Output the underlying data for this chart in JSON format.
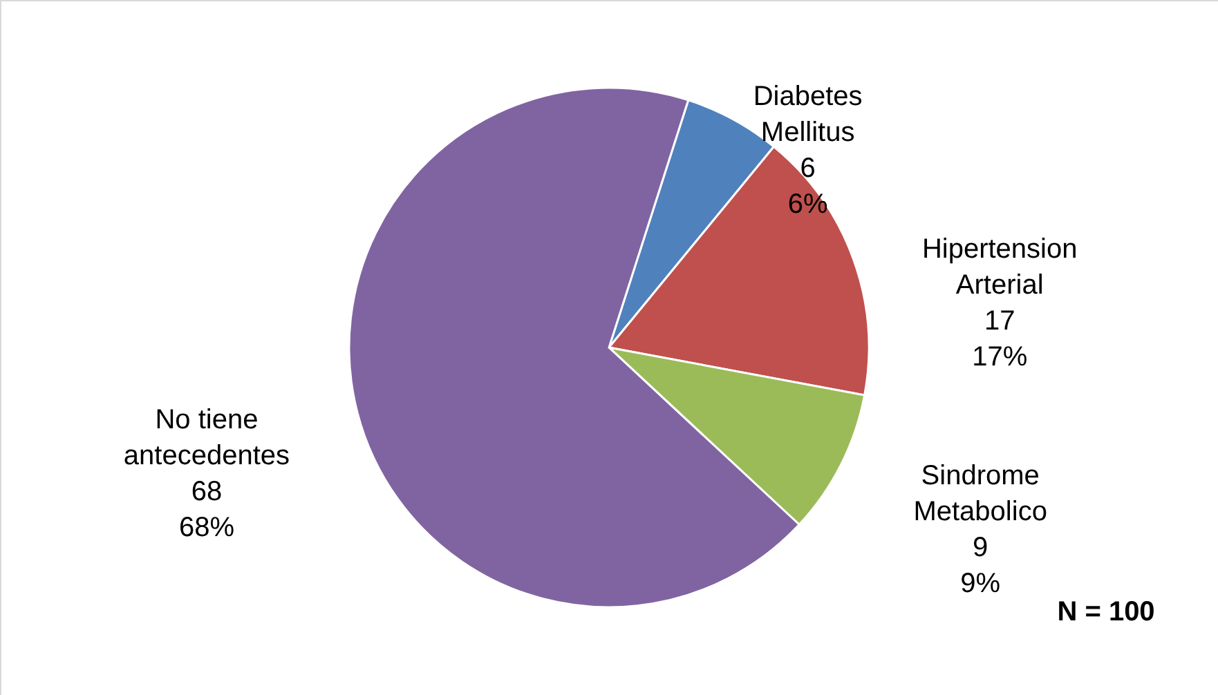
{
  "chart_data": {
    "type": "pie",
    "categories": [
      "Diabetes Mellitus",
      "Hipertension Arterial",
      "Sindrome Metabolico",
      "No tiene antecedentes"
    ],
    "values": [
      6,
      17,
      9,
      68
    ],
    "colors": [
      "#4f81bd",
      "#c0504d",
      "#9bbb59",
      "#8064a2"
    ],
    "value_labels": [
      "6\n6%",
      "17\n17%",
      "9\n9%",
      "68\n68%"
    ],
    "annotations": [
      "N = 100"
    ],
    "legend": false
  }
}
